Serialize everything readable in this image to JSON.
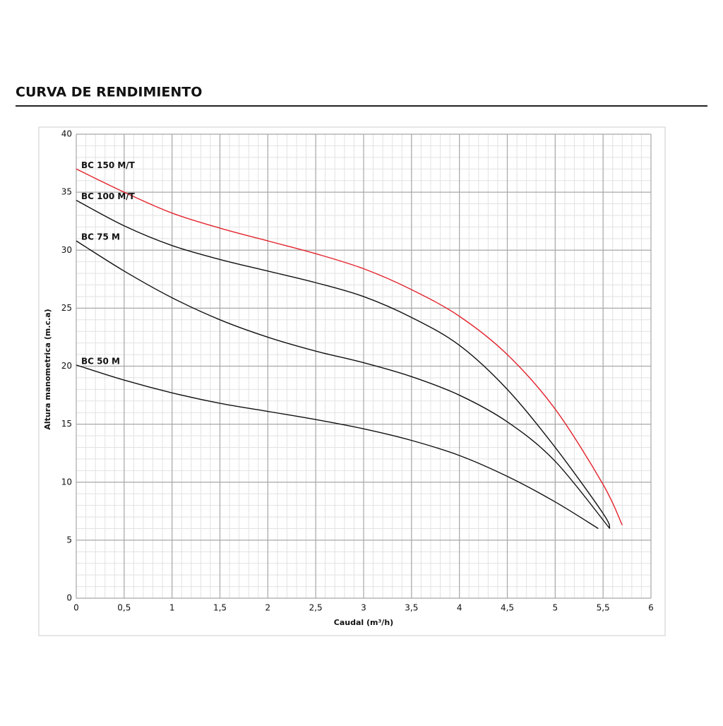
{
  "chart_data": {
    "type": "line",
    "title": "CURVA DE RENDIMIENTO",
    "x_label": "Caudal (m³/h)",
    "y_label": "Altura manometrica (m.c.a)",
    "xlim": [
      0,
      6
    ],
    "ylim": [
      0,
      40
    ],
    "xticks": [
      0,
      {
        "value": 0.5,
        "label": "0,5"
      },
      1,
      {
        "value": 1.5,
        "label": "1,5"
      },
      2,
      {
        "value": 2.5,
        "label": "2,5"
      },
      3,
      {
        "value": 3.5,
        "label": "3,5"
      },
      4,
      {
        "value": 4.5,
        "label": "4,5"
      },
      5,
      {
        "value": 5.5,
        "label": "5,5"
      },
      6
    ],
    "yticks": [
      0,
      5,
      10,
      15,
      20,
      25,
      30,
      35,
      40
    ],
    "grid": true,
    "minor_grid": true,
    "series": [
      {
        "name": "BC 150 M/T",
        "color": "#e3232c",
        "x": [
          0,
          0.5,
          1,
          1.5,
          2,
          2.5,
          3,
          3.5,
          4,
          4.5,
          5,
          5.5,
          5.7
        ],
        "values": [
          37,
          35,
          33.2,
          31.9,
          30.8,
          29.7,
          28.4,
          26.6,
          24.3,
          21,
          16.3,
          9.8,
          6.3
        ]
      },
      {
        "name": "BC 100 M/T",
        "color": "#111111",
        "x": [
          0,
          0.5,
          1,
          1.5,
          2,
          2.5,
          3,
          3.5,
          4,
          4.5,
          5,
          5.5,
          5.57
        ],
        "values": [
          34.3,
          32.1,
          30.4,
          29.2,
          28.2,
          27.2,
          26,
          24.2,
          21.8,
          18,
          13,
          7.3,
          6
        ]
      },
      {
        "name": "BC 75 M",
        "color": "#111111",
        "x": [
          0,
          0.5,
          1,
          1.5,
          2,
          2.5,
          3,
          3.5,
          4,
          4.5,
          5,
          5.57
        ],
        "values": [
          30.8,
          28.2,
          25.9,
          24,
          22.5,
          21.3,
          20.3,
          19.1,
          17.5,
          15.2,
          11.8,
          6
        ]
      },
      {
        "name": "BC 50 M",
        "color": "#111111",
        "x": [
          0,
          0.5,
          1,
          1.5,
          2,
          2.5,
          3,
          3.5,
          4,
          4.5,
          5,
          5.45
        ],
        "values": [
          20.1,
          18.8,
          17.7,
          16.8,
          16.1,
          15.4,
          14.6,
          13.6,
          12.3,
          10.5,
          8.3,
          6
        ]
      }
    ]
  }
}
